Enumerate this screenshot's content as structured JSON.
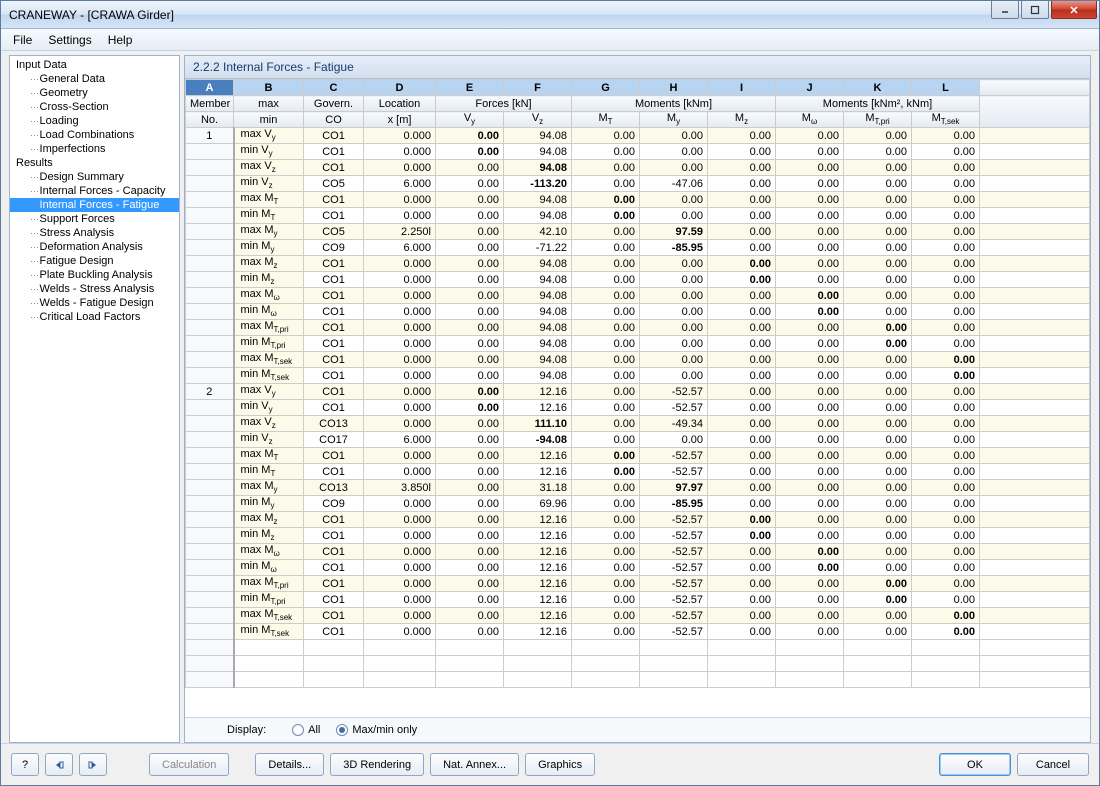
{
  "window": {
    "title": "CRANEWAY - [CRAWA Girder]"
  },
  "menu": {
    "file": "File",
    "settings": "Settings",
    "help": "Help"
  },
  "tree": {
    "root1": "Input Data",
    "root1_items": [
      "General Data",
      "Geometry",
      "Cross-Section",
      "Loading",
      "Load Combinations",
      "Imperfections"
    ],
    "root2": "Results",
    "root2_items": [
      "Design Summary",
      "Internal Forces - Capacity",
      "Internal Forces - Fatigue",
      "Support Forces",
      "Stress Analysis",
      "Deformation Analysis",
      "Fatigue Design",
      "Plate Buckling Analysis",
      "Welds - Stress Analysis",
      "Welds - Fatigue Design",
      "Critical Load Factors"
    ],
    "selected": "Internal Forces - Fatigue"
  },
  "panel": {
    "title": "2.2.2 Internal Forces - Fatigue"
  },
  "columns": {
    "alpha": [
      "A",
      "B",
      "C",
      "D",
      "E",
      "F",
      "G",
      "H",
      "I",
      "J",
      "K",
      "L"
    ],
    "group_member": "Member",
    "group_max": "max",
    "group_govern": "Govern.",
    "group_location": "Location",
    "group_forces": "Forces [kN]",
    "group_moments": "Moments [kNm]",
    "group_moments2": "Moments [kNm², kNm]",
    "sub_no": "No.",
    "sub_min": "min",
    "sub_co": "CO",
    "sub_x": "x [m]",
    "sub_vy": "V|y",
    "sub_vz": "V|z",
    "sub_mt": "M|T",
    "sub_my": "M|y",
    "sub_mz": "M|z",
    "sub_mw": "M|ω",
    "sub_mtpri": "M|T,pri",
    "sub_mtsek": "M|T,sek"
  },
  "row_labels_raw": [
    "max V|y",
    "min V|y",
    "max V|z",
    "min V|z",
    "max M|T",
    "min M|T",
    "max M|y",
    "min M|y",
    "max M|z",
    "min M|z",
    "max M|ω",
    "min M|ω",
    "max M|T,pri",
    "min M|T,pri",
    "max M|T,sek",
    "min M|T,sek"
  ],
  "members": [
    {
      "no": "1",
      "rows": [
        {
          "co": "CO1",
          "x": "0.000",
          "vy": "0.00",
          "vz": "94.08",
          "mt": "0.00",
          "my": "0.00",
          "mz": "0.00",
          "mw": "0.00",
          "mtpri": "0.00",
          "mtsek": "0.00",
          "bold": [
            "vy"
          ]
        },
        {
          "co": "CO1",
          "x": "0.000",
          "vy": "0.00",
          "vz": "94.08",
          "mt": "0.00",
          "my": "0.00",
          "mz": "0.00",
          "mw": "0.00",
          "mtpri": "0.00",
          "mtsek": "0.00",
          "bold": [
            "vy"
          ]
        },
        {
          "co": "CO1",
          "x": "0.000",
          "vy": "0.00",
          "vz": "94.08",
          "mt": "0.00",
          "my": "0.00",
          "mz": "0.00",
          "mw": "0.00",
          "mtpri": "0.00",
          "mtsek": "0.00",
          "bold": [
            "vz"
          ]
        },
        {
          "co": "CO5",
          "x": "6.000",
          "vy": "0.00",
          "vz": "-113.20",
          "mt": "0.00",
          "my": "-47.06",
          "mz": "0.00",
          "mw": "0.00",
          "mtpri": "0.00",
          "mtsek": "0.00",
          "bold": [
            "vz"
          ]
        },
        {
          "co": "CO1",
          "x": "0.000",
          "vy": "0.00",
          "vz": "94.08",
          "mt": "0.00",
          "my": "0.00",
          "mz": "0.00",
          "mw": "0.00",
          "mtpri": "0.00",
          "mtsek": "0.00",
          "bold": [
            "mt"
          ]
        },
        {
          "co": "CO1",
          "x": "0.000",
          "vy": "0.00",
          "vz": "94.08",
          "mt": "0.00",
          "my": "0.00",
          "mz": "0.00",
          "mw": "0.00",
          "mtpri": "0.00",
          "mtsek": "0.00",
          "bold": [
            "mt"
          ]
        },
        {
          "co": "CO5",
          "x": "2.250l",
          "vy": "0.00",
          "vz": "42.10",
          "mt": "0.00",
          "my": "97.59",
          "mz": "0.00",
          "mw": "0.00",
          "mtpri": "0.00",
          "mtsek": "0.00",
          "bold": [
            "my"
          ]
        },
        {
          "co": "CO9",
          "x": "6.000",
          "vy": "0.00",
          "vz": "-71.22",
          "mt": "0.00",
          "my": "-85.95",
          "mz": "0.00",
          "mw": "0.00",
          "mtpri": "0.00",
          "mtsek": "0.00",
          "bold": [
            "my"
          ]
        },
        {
          "co": "CO1",
          "x": "0.000",
          "vy": "0.00",
          "vz": "94.08",
          "mt": "0.00",
          "my": "0.00",
          "mz": "0.00",
          "mw": "0.00",
          "mtpri": "0.00",
          "mtsek": "0.00",
          "bold": [
            "mz"
          ]
        },
        {
          "co": "CO1",
          "x": "0.000",
          "vy": "0.00",
          "vz": "94.08",
          "mt": "0.00",
          "my": "0.00",
          "mz": "0.00",
          "mw": "0.00",
          "mtpri": "0.00",
          "mtsek": "0.00",
          "bold": [
            "mz"
          ]
        },
        {
          "co": "CO1",
          "x": "0.000",
          "vy": "0.00",
          "vz": "94.08",
          "mt": "0.00",
          "my": "0.00",
          "mz": "0.00",
          "mw": "0.00",
          "mtpri": "0.00",
          "mtsek": "0.00",
          "bold": [
            "mw"
          ]
        },
        {
          "co": "CO1",
          "x": "0.000",
          "vy": "0.00",
          "vz": "94.08",
          "mt": "0.00",
          "my": "0.00",
          "mz": "0.00",
          "mw": "0.00",
          "mtpri": "0.00",
          "mtsek": "0.00",
          "bold": [
            "mw"
          ]
        },
        {
          "co": "CO1",
          "x": "0.000",
          "vy": "0.00",
          "vz": "94.08",
          "mt": "0.00",
          "my": "0.00",
          "mz": "0.00",
          "mw": "0.00",
          "mtpri": "0.00",
          "mtsek": "0.00",
          "bold": [
            "mtpri"
          ]
        },
        {
          "co": "CO1",
          "x": "0.000",
          "vy": "0.00",
          "vz": "94.08",
          "mt": "0.00",
          "my": "0.00",
          "mz": "0.00",
          "mw": "0.00",
          "mtpri": "0.00",
          "mtsek": "0.00",
          "bold": [
            "mtpri"
          ]
        },
        {
          "co": "CO1",
          "x": "0.000",
          "vy": "0.00",
          "vz": "94.08",
          "mt": "0.00",
          "my": "0.00",
          "mz": "0.00",
          "mw": "0.00",
          "mtpri": "0.00",
          "mtsek": "0.00",
          "bold": [
            "mtsek"
          ]
        },
        {
          "co": "CO1",
          "x": "0.000",
          "vy": "0.00",
          "vz": "94.08",
          "mt": "0.00",
          "my": "0.00",
          "mz": "0.00",
          "mw": "0.00",
          "mtpri": "0.00",
          "mtsek": "0.00",
          "bold": [
            "mtsek"
          ]
        }
      ]
    },
    {
      "no": "2",
      "rows": [
        {
          "co": "CO1",
          "x": "0.000",
          "vy": "0.00",
          "vz": "12.16",
          "mt": "0.00",
          "my": "-52.57",
          "mz": "0.00",
          "mw": "0.00",
          "mtpri": "0.00",
          "mtsek": "0.00",
          "bold": [
            "vy"
          ]
        },
        {
          "co": "CO1",
          "x": "0.000",
          "vy": "0.00",
          "vz": "12.16",
          "mt": "0.00",
          "my": "-52.57",
          "mz": "0.00",
          "mw": "0.00",
          "mtpri": "0.00",
          "mtsek": "0.00",
          "bold": [
            "vy"
          ]
        },
        {
          "co": "CO13",
          "x": "0.000",
          "vy": "0.00",
          "vz": "111.10",
          "mt": "0.00",
          "my": "-49.34",
          "mz": "0.00",
          "mw": "0.00",
          "mtpri": "0.00",
          "mtsek": "0.00",
          "bold": [
            "vz"
          ]
        },
        {
          "co": "CO17",
          "x": "6.000",
          "vy": "0.00",
          "vz": "-94.08",
          "mt": "0.00",
          "my": "0.00",
          "mz": "0.00",
          "mw": "0.00",
          "mtpri": "0.00",
          "mtsek": "0.00",
          "bold": [
            "vz"
          ]
        },
        {
          "co": "CO1",
          "x": "0.000",
          "vy": "0.00",
          "vz": "12.16",
          "mt": "0.00",
          "my": "-52.57",
          "mz": "0.00",
          "mw": "0.00",
          "mtpri": "0.00",
          "mtsek": "0.00",
          "bold": [
            "mt"
          ]
        },
        {
          "co": "CO1",
          "x": "0.000",
          "vy": "0.00",
          "vz": "12.16",
          "mt": "0.00",
          "my": "-52.57",
          "mz": "0.00",
          "mw": "0.00",
          "mtpri": "0.00",
          "mtsek": "0.00",
          "bold": [
            "mt"
          ]
        },
        {
          "co": "CO13",
          "x": "3.850l",
          "vy": "0.00",
          "vz": "31.18",
          "mt": "0.00",
          "my": "97.97",
          "mz": "0.00",
          "mw": "0.00",
          "mtpri": "0.00",
          "mtsek": "0.00",
          "bold": [
            "my"
          ]
        },
        {
          "co": "CO9",
          "x": "0.000",
          "vy": "0.00",
          "vz": "69.96",
          "mt": "0.00",
          "my": "-85.95",
          "mz": "0.00",
          "mw": "0.00",
          "mtpri": "0.00",
          "mtsek": "0.00",
          "bold": [
            "my"
          ]
        },
        {
          "co": "CO1",
          "x": "0.000",
          "vy": "0.00",
          "vz": "12.16",
          "mt": "0.00",
          "my": "-52.57",
          "mz": "0.00",
          "mw": "0.00",
          "mtpri": "0.00",
          "mtsek": "0.00",
          "bold": [
            "mz"
          ]
        },
        {
          "co": "CO1",
          "x": "0.000",
          "vy": "0.00",
          "vz": "12.16",
          "mt": "0.00",
          "my": "-52.57",
          "mz": "0.00",
          "mw": "0.00",
          "mtpri": "0.00",
          "mtsek": "0.00",
          "bold": [
            "mz"
          ]
        },
        {
          "co": "CO1",
          "x": "0.000",
          "vy": "0.00",
          "vz": "12.16",
          "mt": "0.00",
          "my": "-52.57",
          "mz": "0.00",
          "mw": "0.00",
          "mtpri": "0.00",
          "mtsek": "0.00",
          "bold": [
            "mw"
          ]
        },
        {
          "co": "CO1",
          "x": "0.000",
          "vy": "0.00",
          "vz": "12.16",
          "mt": "0.00",
          "my": "-52.57",
          "mz": "0.00",
          "mw": "0.00",
          "mtpri": "0.00",
          "mtsek": "0.00",
          "bold": [
            "mw"
          ]
        },
        {
          "co": "CO1",
          "x": "0.000",
          "vy": "0.00",
          "vz": "12.16",
          "mt": "0.00",
          "my": "-52.57",
          "mz": "0.00",
          "mw": "0.00",
          "mtpri": "0.00",
          "mtsek": "0.00",
          "bold": [
            "mtpri"
          ]
        },
        {
          "co": "CO1",
          "x": "0.000",
          "vy": "0.00",
          "vz": "12.16",
          "mt": "0.00",
          "my": "-52.57",
          "mz": "0.00",
          "mw": "0.00",
          "mtpri": "0.00",
          "mtsek": "0.00",
          "bold": [
            "mtpri"
          ]
        },
        {
          "co": "CO1",
          "x": "0.000",
          "vy": "0.00",
          "vz": "12.16",
          "mt": "0.00",
          "my": "-52.57",
          "mz": "0.00",
          "mw": "0.00",
          "mtpri": "0.00",
          "mtsek": "0.00",
          "bold": [
            "mtsek"
          ]
        },
        {
          "co": "CO1",
          "x": "0.000",
          "vy": "0.00",
          "vz": "12.16",
          "mt": "0.00",
          "my": "-52.57",
          "mz": "0.00",
          "mw": "0.00",
          "mtpri": "0.00",
          "mtsek": "0.00",
          "bold": [
            "mtsek"
          ]
        }
      ]
    }
  ],
  "display": {
    "label": "Display:",
    "all": "All",
    "maxmin": "Max/min only",
    "selected": "maxmin"
  },
  "footer": {
    "calculation": "Calculation",
    "details": "Details...",
    "rendering": "3D Rendering",
    "annex": "Nat. Annex...",
    "graphics": "Graphics",
    "ok": "OK",
    "cancel": "Cancel"
  },
  "col_widths": {
    "member": 48,
    "label": 70,
    "co": 60,
    "x": 72,
    "val": 68
  },
  "colors": {
    "sel": "#3399ff",
    "odd": "#fcfbea",
    "th": "#e3eaf3"
  }
}
